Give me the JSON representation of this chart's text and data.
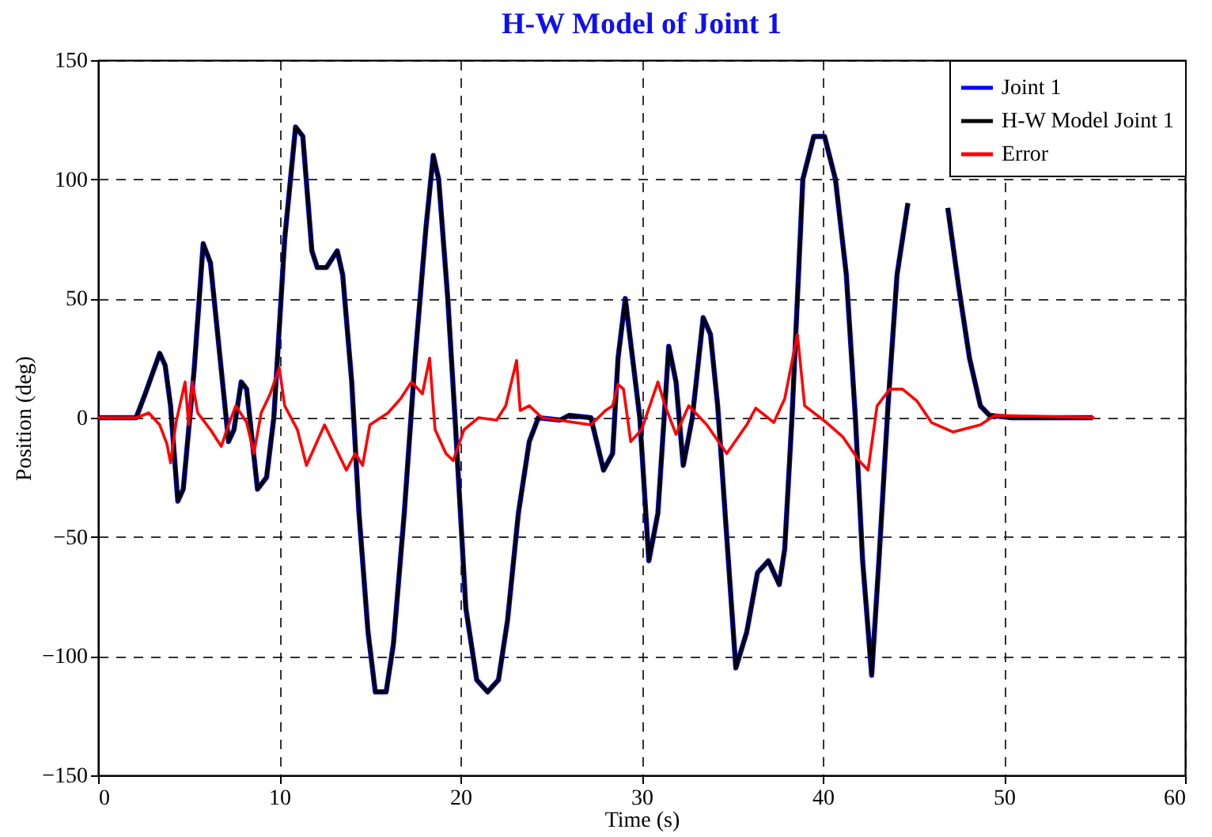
{
  "chart_data": {
    "type": "line",
    "title": "H-W Model of Joint 1",
    "xlabel": "Time (s)",
    "ylabel": "Position (deg)",
    "xlim": [
      0,
      60
    ],
    "xticks": [
      0,
      10,
      20,
      30,
      40,
      50,
      60
    ],
    "ylim": [
      -150,
      150
    ],
    "yticks": [
      -150,
      -100,
      -50,
      0,
      50,
      100,
      150
    ],
    "grid": true,
    "legend": "top right",
    "line_style": "solid",
    "marker": "none",
    "series": [
      {
        "name": "Joint 1",
        "color": "#0000ff",
        "x": [
          0,
          2.1,
          2.6,
          3.4,
          3.7,
          4.0,
          4.4,
          4.7,
          5.3,
          5.8,
          6.2,
          6.8,
          7.2,
          7.5,
          7.9,
          8.2,
          8.8,
          9.3,
          9.7,
          10.3,
          10.9,
          11.3,
          11.8,
          12.1,
          12.6,
          13.2,
          13.5,
          14.0,
          14.4,
          14.9,
          15.3,
          15.9,
          16.3,
          16.9,
          17.5,
          18.1,
          18.5,
          18.8,
          19.3,
          19.7,
          20.3,
          20.9,
          21.5,
          22.1,
          22.6,
          23.2,
          23.8,
          24.3,
          25.5,
          26.0,
          27.2,
          27.9,
          28.4,
          28.7,
          29.1,
          29.9,
          30.4,
          30.9,
          31.5,
          31.9,
          32.3,
          32.8,
          33.4,
          33.8,
          34.2,
          34.7,
          35.2,
          35.8,
          36.4,
          37.0,
          37.6,
          37.9,
          38.3,
          38.9,
          39.5,
          40.1,
          40.7,
          41.3,
          41.8,
          42.2,
          42.7,
          43.1,
          43.6,
          44.1,
          44.7,
          45.0,
          46.5,
          46.9,
          47.5,
          48.1,
          48.7,
          49.2,
          50.4,
          54.9
        ],
        "values": [
          0,
          0,
          10,
          27,
          22,
          5,
          -35,
          -30,
          20,
          73,
          65,
          20,
          -10,
          -5,
          15,
          12,
          -30,
          -25,
          0,
          75,
          122,
          118,
          70,
          63,
          63,
          70,
          60,
          15,
          -40,
          -90,
          -115,
          -115,
          -95,
          -40,
          25,
          80,
          110,
          100,
          50,
          0,
          -80,
          -110,
          -115,
          -110,
          -85,
          -40,
          -10,
          0,
          -1,
          1,
          0,
          -22,
          -15,
          25,
          50,
          0,
          -60,
          -40,
          30,
          15,
          -20,
          0,
          42,
          35,
          5,
          -50,
          -105,
          -90,
          -65,
          -60,
          -70,
          -55,
          0,
          100,
          118,
          118,
          100,
          60,
          0,
          -60,
          -108,
          -60,
          5,
          60,
          90,
          null,
          null,
          88,
          55,
          25,
          5,
          1,
          0,
          0
        ]
      },
      {
        "name": "H-W Model Joint 1",
        "color": "#000000",
        "x": [
          0,
          2.1,
          2.6,
          3.4,
          3.7,
          4.0,
          4.4,
          4.7,
          5.3,
          5.8,
          6.2,
          6.8,
          7.2,
          7.5,
          7.9,
          8.2,
          8.8,
          9.3,
          9.7,
          10.3,
          10.9,
          11.3,
          11.8,
          12.1,
          12.6,
          13.2,
          13.5,
          14.0,
          14.4,
          14.9,
          15.3,
          15.9,
          16.3,
          16.9,
          17.5,
          18.1,
          18.5,
          18.8,
          19.3,
          19.7,
          20.3,
          20.9,
          21.5,
          22.1,
          22.6,
          23.2,
          23.8,
          24.3,
          25.5,
          26.0,
          27.2,
          27.9,
          28.4,
          28.7,
          29.1,
          29.9,
          30.4,
          30.9,
          31.5,
          31.9,
          32.3,
          32.8,
          33.4,
          33.8,
          34.2,
          34.7,
          35.2,
          35.8,
          36.4,
          37.0,
          37.6,
          37.9,
          38.3,
          38.9,
          39.5,
          40.1,
          40.7,
          41.3,
          41.8,
          42.2,
          42.7,
          43.1,
          43.6,
          44.1,
          44.7,
          45.0,
          46.5,
          46.9,
          47.5,
          48.1,
          48.7,
          49.2,
          50.4,
          54.9
        ],
        "values": [
          0,
          0,
          10,
          27,
          22,
          5,
          -35,
          -30,
          20,
          73,
          65,
          20,
          -10,
          -5,
          15,
          12,
          -30,
          -25,
          0,
          75,
          122,
          118,
          70,
          63,
          63,
          70,
          60,
          15,
          -40,
          -90,
          -115,
          -115,
          -95,
          -40,
          25,
          80,
          110,
          100,
          50,
          0,
          -80,
          -110,
          -115,
          -110,
          -85,
          -40,
          -10,
          0,
          -1,
          1,
          0,
          -22,
          -15,
          25,
          50,
          0,
          -60,
          -40,
          30,
          15,
          -20,
          0,
          42,
          35,
          5,
          -50,
          -105,
          -90,
          -65,
          -60,
          -70,
          -55,
          0,
          100,
          118,
          118,
          100,
          60,
          0,
          -60,
          -108,
          -60,
          5,
          60,
          90,
          null,
          null,
          88,
          55,
          25,
          5,
          1,
          0,
          0
        ]
      },
      {
        "name": "Error",
        "color": "#ff0000",
        "x": [
          0,
          2.1,
          2.8,
          3.4,
          3.8,
          4.0,
          4.3,
          4.8,
          5.0,
          5.2,
          5.5,
          6.2,
          6.8,
          7.2,
          7.6,
          8.2,
          8.6,
          9.0,
          9.5,
          10.0,
          10.3,
          11.0,
          11.5,
          12.5,
          13.7,
          14.2,
          14.6,
          15.0,
          16.0,
          16.7,
          17.3,
          17.9,
          18.3,
          18.6,
          19.2,
          19.6,
          20.2,
          21.0,
          22.0,
          22.5,
          23.1,
          23.3,
          23.8,
          24.5,
          27.2,
          28.0,
          28.4,
          28.7,
          29.0,
          29.4,
          30.0,
          30.9,
          31.3,
          31.9,
          32.6,
          33.6,
          34.7,
          35.8,
          36.3,
          37.3,
          37.9,
          38.6,
          39.0,
          40.2,
          41.1,
          42.0,
          42.5,
          43.0,
          43.7,
          44.4,
          45.2,
          46.0,
          47.2,
          48.7,
          49.5,
          55.0
        ],
        "values": [
          0,
          0,
          2,
          -3,
          -11,
          -19,
          -2,
          15,
          -3,
          15,
          2,
          -5,
          -12,
          -3,
          5,
          -2,
          -15,
          2,
          10,
          21,
          5,
          -5,
          -20,
          -3,
          -22,
          -15,
          -20,
          -3,
          2,
          8,
          15,
          10,
          25,
          -5,
          -15,
          -18,
          -5,
          0,
          -1,
          5,
          24,
          3,
          5,
          0,
          -3,
          3,
          5,
          14,
          12,
          -10,
          -5,
          15,
          5,
          -7,
          5,
          -3,
          -15,
          -3,
          4,
          -2,
          8,
          35,
          5,
          -2,
          -8,
          -18,
          -22,
          5,
          12,
          12,
          7,
          -2,
          -6,
          -3,
          1,
          0
        ]
      }
    ]
  }
}
